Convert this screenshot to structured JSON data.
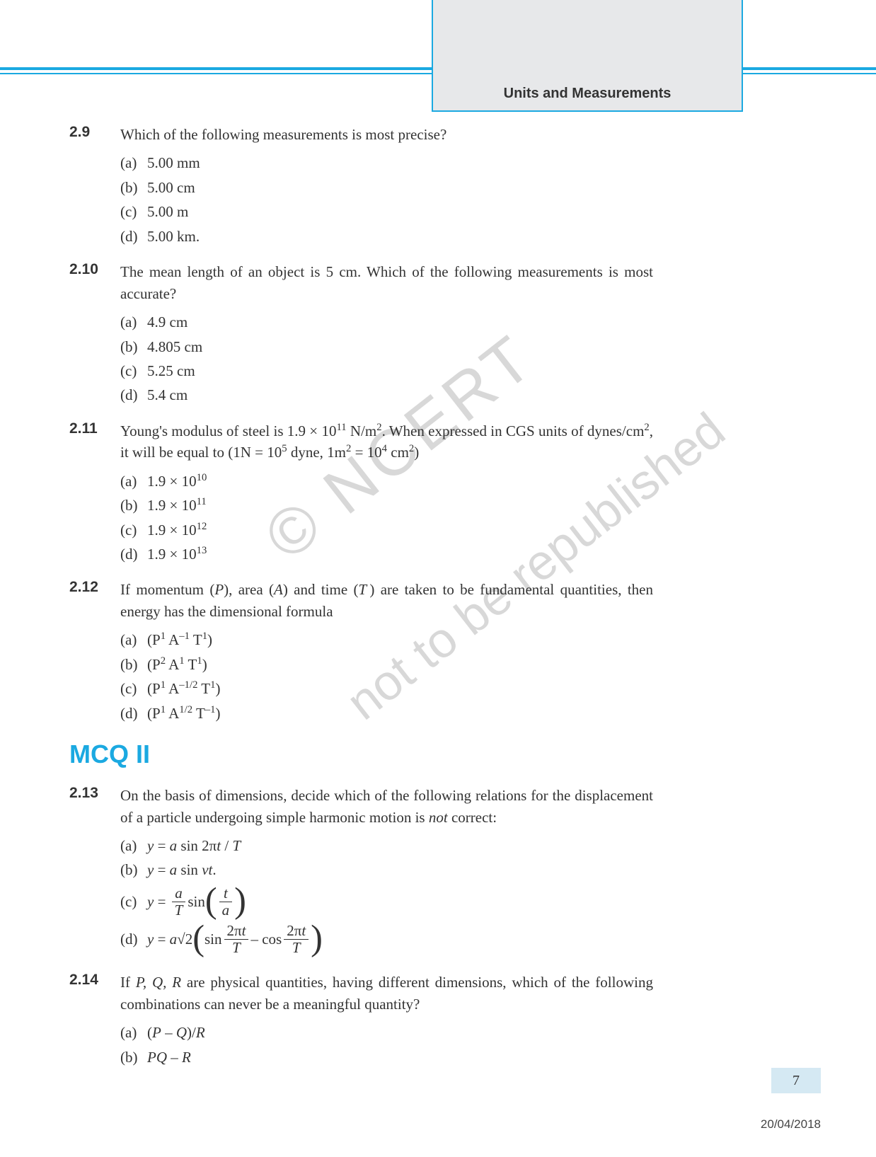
{
  "header": {
    "chapter_title": "Units and Measurements"
  },
  "colors": {
    "accent": "#1ba9e1",
    "tab_bg": "#e7e8ea",
    "watermark": "#d8d8d8",
    "pagenum_bg": "#d5e9f3",
    "text": "#333333"
  },
  "questions": [
    {
      "num": "2.9",
      "text": "Which of the following measurements is most precise?",
      "options": [
        {
          "l": "(a)",
          "v": "5.00 mm"
        },
        {
          "l": "(b)",
          "v": "5.00 cm"
        },
        {
          "l": "(c)",
          "v": "5.00 m"
        },
        {
          "l": "(d)",
          "v": "5.00 km."
        }
      ]
    },
    {
      "num": "2.10",
      "text": "The mean length of an object is 5 cm. Which of the following measurements is most accurate?",
      "options": [
        {
          "l": "(a)",
          "v": "4.9 cm"
        },
        {
          "l": "(b)",
          "v": "4.805 cm"
        },
        {
          "l": "(c)",
          "v": "5.25 cm"
        },
        {
          "l": "(d)",
          "v": "5.4 cm"
        }
      ]
    },
    {
      "num": "2.11",
      "text_html": "Young's modulus of steel is 1.9 × 10<sup>11</sup> N/m<sup>2</sup>. When expressed in CGS units of dynes/cm<sup>2</sup>, it will be equal to (1N = 10<sup>5</sup> dyne, 1m<sup>2</sup> = 10<sup>4</sup> cm<sup>2</sup>)",
      "options_html": [
        {
          "l": "(a)",
          "v": "1.9 × 10<sup>10</sup>"
        },
        {
          "l": "(b)",
          "v": "1.9 × 10<sup>11</sup>"
        },
        {
          "l": "(c)",
          "v": "1.9 × 10<sup>12</sup>"
        },
        {
          "l": "(d)",
          "v": "1.9 × 10<sup>13</sup>"
        }
      ]
    },
    {
      "num": "2.12",
      "text_html": "If momentum (<span class='ital'>P</span>), area (<span class='ital'>A</span>) and time (<span class='ital'>T</span>&thinsp;) are taken to be fundamental quantities, then energy has the dimensional formula",
      "options_html": [
        {
          "l": "(a)",
          "v": "(P<sup>1</sup> A<sup>–1</sup> T<sup>1</sup>)"
        },
        {
          "l": "(b)",
          "v": "(P<sup>2</sup> A<sup>1</sup> T<sup>1</sup>)"
        },
        {
          "l": "(c)",
          "v": "(P<sup>1</sup> A<sup>–1/2</sup> T<sup>1</sup>)"
        },
        {
          "l": "(d)",
          "v": "(P<sup>1</sup> A<sup>1/2</sup> T<sup>–1</sup>)"
        }
      ]
    }
  ],
  "section2_title": "MCQ II",
  "questions2": [
    {
      "num": "2.13",
      "text_html": "On the basis of dimensions, decide which of the following relations for the displacement of a particle undergoing simple harmonic motion is <span class='ital'>not</span> correct:",
      "options_eq": [
        {
          "l": "(a)",
          "lhs": "y =",
          "rhs_html": "<span class='ital'>a</span> sin 2π<span class='ital'>t</span> / <span class='ital'>T</span>"
        },
        {
          "l": "(b)",
          "lhs": "y =",
          "rhs_html": "<span class='ital'>a</span> sin <span class='ital'>vt</span>."
        },
        {
          "l": "(c)",
          "lhs": "y =",
          "rhs_frac1": {
            "num": "<span class='ital'>a</span>",
            "den": "<span class='ital'>T</span>"
          },
          "mid": " sin",
          "rhs_paren_frac": {
            "num": "<span class='ital'>t</span>",
            "den": "<span class='ital'>a</span>"
          }
        },
        {
          "l": "(d)",
          "lhs": "y =",
          "pre": "<span class='ital'>a</span>√2",
          "paren_inner_html": "sin <span class='frac'><span class='num'>2π<span class='ital'>t</span></span><span class='den'><span class='ital'>T</span></span></span> – cos <span class='frac'><span class='num'>2π<span class='ital'>t</span></span><span class='den'><span class='ital'>T</span></span></span>"
        }
      ]
    },
    {
      "num": "2.14",
      "text_html": "If <span class='ital'>P, Q, R</span> are physical quantities, having different dimensions, which of the following combinations can never be a meaningful quantity?",
      "options_html": [
        {
          "l": "(a)",
          "v": "(<span class='ital'>P</span> – <span class='ital'>Q</span>)/<span class='ital'>R</span>"
        },
        {
          "l": "(b)",
          "v": "<span class='ital'>PQ</span> – <span class='ital'>R</span>"
        }
      ]
    }
  ],
  "watermarks": {
    "wm1": "© NCERT",
    "wm2": "not to be republished"
  },
  "footer": {
    "page_number": "7",
    "date": "20/04/2018"
  }
}
